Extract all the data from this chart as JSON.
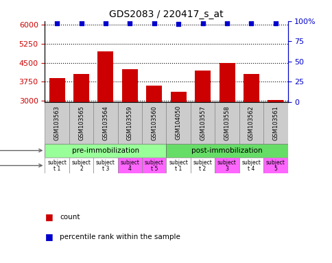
{
  "title": "GDS2083 / 220417_s_at",
  "samples": [
    "GSM103563",
    "GSM103565",
    "GSM103564",
    "GSM103559",
    "GSM103560",
    "GSM104050",
    "GSM103557",
    "GSM103558",
    "GSM103562",
    "GSM103561"
  ],
  "counts": [
    3900,
    4050,
    4950,
    4250,
    3600,
    3350,
    4200,
    4500,
    4050,
    3030
  ],
  "percentile_ranks": [
    97,
    97.3,
    97.6,
    97.2,
    96.8,
    96.5,
    97.2,
    97.5,
    97.2,
    96.8
  ],
  "bar_color": "#cc0000",
  "dot_color": "#0000cc",
  "ylim_left": [
    2950,
    6150
  ],
  "ylim_right": [
    0,
    100
  ],
  "yticks_left": [
    3000,
    3750,
    4500,
    5250,
    6000
  ],
  "yticks_right": [
    0,
    25,
    50,
    75,
    100
  ],
  "stress_labels": [
    "pre-immobilization",
    "post-immobilization"
  ],
  "stress_colors": [
    "#99ff99",
    "#66dd66"
  ],
  "stress_pre_count": 5,
  "stress_post_count": 5,
  "individual_labels": [
    "subject\nt 1",
    "subject\n2",
    "subject\nt 3",
    "subject\n4",
    "subject\nt 5",
    "subject\nt 1",
    "subject\nt 2",
    "subject\n3",
    "subject\nt 4",
    "subject\n5"
  ],
  "individual_colors": [
    "#ffffff",
    "#ffffff",
    "#ffffff",
    "#ff66ff",
    "#ff66ff",
    "#ffffff",
    "#ffffff",
    "#ff66ff",
    "#ffffff",
    "#ff66ff"
  ],
  "background_color": "#ffffff",
  "dotted_line_color": "#000000",
  "gsm_bg_color": "#cccccc",
  "legend_items": [
    {
      "label": "count",
      "color": "#cc0000"
    },
    {
      "label": "percentile rank within the sample",
      "color": "#0000cc"
    }
  ]
}
